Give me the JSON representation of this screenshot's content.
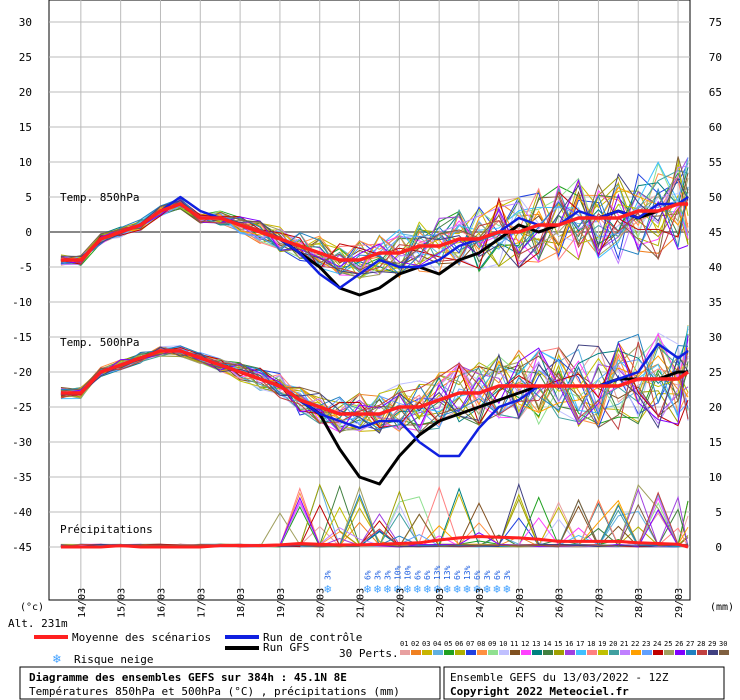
{
  "chart_data": {
    "type": "line",
    "title_line1": "Diagramme des ensembles GEFS sur 384h : 45.1N 8E",
    "title_line2": "Températures 850hPa et 500hPa (°C) , précipitations (mm)",
    "run_info": "Ensemble GEFS du 13/03/2022 - 12Z",
    "copyright": "Copyright 2022 Meteociel.fr",
    "panel_label_850": "Temp. 850hPa",
    "panel_label_500": "Temp. 500hPa",
    "panel_label_precip": "Précipitations",
    "left_unit": "(°c)",
    "right_unit": "(mm)",
    "altitude": "Alt. 231m",
    "left_axis": {
      "ticks": [
        30,
        25,
        20,
        15,
        10,
        5,
        0,
        -5,
        -10,
        -15,
        -20,
        -25,
        -30,
        -35,
        -40,
        -45
      ],
      "range": [
        -45,
        30
      ]
    },
    "right_axis": {
      "ticks": [
        75,
        70,
        65,
        60,
        55,
        50,
        45,
        40,
        35,
        30,
        25,
        20,
        15,
        10,
        5,
        0
      ],
      "range": [
        0,
        75
      ]
    },
    "dates": [
      "14/03",
      "15/03",
      "16/03",
      "17/03",
      "18/03",
      "19/03",
      "20/03",
      "21/03",
      "22/03",
      "23/03",
      "24/03",
      "25/03",
      "26/03",
      "27/03",
      "28/03",
      "29/03"
    ],
    "legend": {
      "mean": "Moyenne des scénarios",
      "control": "Run de contrôle",
      "gfs": "Run GFS",
      "snow": "Risque neige",
      "perts": "30 Perts."
    },
    "pert_numbers": [
      "01",
      "02",
      "03",
      "04",
      "05",
      "06",
      "07",
      "08",
      "09",
      "10",
      "11",
      "12",
      "13",
      "14",
      "15",
      "16",
      "17",
      "18",
      "19",
      "20",
      "21",
      "22",
      "23",
      "24",
      "25",
      "26",
      "27",
      "28",
      "29",
      "30"
    ],
    "pert_colors": [
      "#e8a0a0",
      "#f08020",
      "#c8b400",
      "#60b0e0",
      "#20a020",
      "#b0b000",
      "#2040e0",
      "#ff9040",
      "#90e090",
      "#c0c0ff",
      "#805020",
      "#ff40ff",
      "#008080",
      "#408040",
      "#a0a000",
      "#a040e0",
      "#40c0ff",
      "#ff8080",
      "#c0c000",
      "#40a0a0",
      "#c080ff",
      "#ffa000",
      "#60a0ff",
      "#c00000",
      "#a0a060",
      "#8000ff",
      "#2080c0",
      "#c04040",
      "#404080",
      "#806040"
    ],
    "snow_risk": [
      {
        "day": 20.2,
        "label": "3%"
      },
      {
        "day": 21.2,
        "label": "6%"
      },
      {
        "day": 21.45,
        "label": "3%"
      },
      {
        "day": 21.7,
        "label": "3%"
      },
      {
        "day": 21.95,
        "label": "10%"
      },
      {
        "day": 22.2,
        "label": "10%"
      },
      {
        "day": 22.45,
        "label": "6%"
      },
      {
        "day": 22.7,
        "label": "6%"
      },
      {
        "day": 22.95,
        "label": "13%"
      },
      {
        "day": 23.2,
        "label": "13%"
      },
      {
        "day": 23.45,
        "label": "6%"
      },
      {
        "day": 23.7,
        "label": "13%"
      },
      {
        "day": 23.95,
        "label": "6%"
      },
      {
        "day": 24.2,
        "label": "3%"
      },
      {
        "day": 24.45,
        "label": "6%"
      },
      {
        "day": 24.7,
        "label": "3%"
      }
    ],
    "mean_850": {
      "x": [
        13.5,
        14,
        14.5,
        15,
        15.5,
        16,
        16.5,
        17,
        17.5,
        18,
        18.5,
        19,
        19.5,
        20,
        20.5,
        21,
        21.5,
        22,
        22.5,
        23,
        23.5,
        24,
        24.5,
        25,
        25.5,
        26,
        26.5,
        27,
        27.5,
        28,
        28.5,
        29,
        29.25
      ],
      "y": [
        -4,
        -4,
        -1,
        0,
        1,
        3,
        4,
        2,
        2,
        1,
        0,
        -1,
        -2,
        -3,
        -4,
        -4,
        -3,
        -3,
        -2,
        -2,
        -1,
        -1,
        0,
        0,
        1,
        1,
        2,
        2,
        2,
        3,
        3,
        4,
        4
      ]
    },
    "control_850": {
      "x": [
        13.5,
        14,
        14.5,
        15,
        15.5,
        16,
        16.5,
        17,
        17.5,
        18,
        18.5,
        19,
        19.5,
        20,
        20.5,
        21,
        21.5,
        22,
        22.5,
        23,
        23.5,
        24,
        24.5,
        25,
        25.5,
        26,
        26.5,
        27,
        27.5,
        28,
        28.5,
        29,
        29.25
      ],
      "y": [
        -4,
        -4,
        -1,
        0,
        1,
        3,
        5,
        3,
        2,
        1,
        0,
        -1,
        -3,
        -6,
        -8,
        -6,
        -4,
        -5,
        -5,
        -4,
        -2,
        -1,
        0,
        2,
        1,
        1,
        3,
        2,
        3,
        2,
        4,
        4,
        5
      ]
    },
    "gfs_850": {
      "x": [
        13.5,
        14,
        14.5,
        15,
        15.5,
        16,
        16.5,
        17,
        17.5,
        18,
        18.5,
        19,
        19.5,
        20,
        20.5,
        21,
        21.5,
        22,
        22.5,
        23,
        23.5,
        24,
        24.5,
        25,
        25.5,
        26,
        26.5,
        27,
        27.5,
        28,
        28.5,
        29,
        29.25
      ],
      "y": [
        -4,
        -4,
        -1,
        0,
        1,
        3,
        4,
        2,
        2,
        1,
        0,
        -1,
        -3,
        -5,
        -8,
        -9,
        -8,
        -6,
        -5,
        -6,
        -4,
        -3,
        -1,
        1,
        0,
        1,
        2,
        2,
        3,
        2,
        3,
        4,
        4
      ]
    },
    "mean_500": {
      "x": [
        13.5,
        14,
        14.5,
        15,
        15.5,
        16,
        16.5,
        17,
        17.5,
        18,
        18.5,
        19,
        19.5,
        20,
        20.5,
        21,
        21.5,
        22,
        22.5,
        23,
        23.5,
        24,
        24.5,
        25,
        25.5,
        26,
        26.5,
        27,
        27.5,
        28,
        28.5,
        29,
        29.25
      ],
      "y": [
        -23,
        -23,
        -20,
        -19,
        -18,
        -17,
        -17,
        -18,
        -19,
        -20,
        -21,
        -22,
        -24,
        -25,
        -26,
        -26,
        -26,
        -25,
        -25,
        -24,
        -23,
        -23,
        -22,
        -22,
        -22,
        -22,
        -22,
        -22,
        -22,
        -21,
        -21,
        -21,
        -20
      ]
    },
    "control_500": {
      "x": [
        13.5,
        14,
        14.5,
        15,
        15.5,
        16,
        16.5,
        17,
        17.5,
        18,
        18.5,
        19,
        19.5,
        20,
        20.5,
        21,
        21.5,
        22,
        22.5,
        23,
        23.5,
        24,
        24.5,
        25,
        25.5,
        26,
        26.5,
        27,
        27.5,
        28,
        28.5,
        29,
        29.25
      ],
      "y": [
        -23,
        -23,
        -20,
        -19,
        -18,
        -17,
        -17,
        -18,
        -19,
        -20,
        -21,
        -22,
        -24,
        -26,
        -27,
        -28,
        -27,
        -27,
        -30,
        -32,
        -32,
        -28,
        -25,
        -24,
        -22,
        -22,
        -22,
        -22,
        -21,
        -20,
        -16,
        -18,
        -17
      ]
    },
    "gfs_500": {
      "x": [
        13.5,
        14,
        14.5,
        15,
        15.5,
        16,
        16.5,
        17,
        17.5,
        18,
        18.5,
        19,
        19.5,
        20,
        20.5,
        21,
        21.5,
        22,
        22.5,
        23,
        23.5,
        24,
        24.5,
        25,
        25.5,
        26,
        26.5,
        27,
        27.5,
        28,
        28.5,
        29,
        29.25
      ],
      "y": [
        -23,
        -23,
        -20,
        -19,
        -18,
        -17,
        -17,
        -18,
        -19,
        -20,
        -21,
        -22,
        -24,
        -26,
        -31,
        -35,
        -36,
        -32,
        -29,
        -27,
        -26,
        -25,
        -24,
        -23,
        -22,
        -22,
        -22,
        -22,
        -21,
        -21,
        -21,
        -20,
        -20
      ]
    },
    "mean_precip": {
      "x": [
        13.5,
        14,
        14.5,
        15,
        15.5,
        16,
        16.5,
        17,
        17.5,
        18,
        18.5,
        19,
        19.5,
        20,
        20.5,
        21,
        21.5,
        22,
        22.5,
        23,
        23.5,
        24,
        24.5,
        25,
        25.5,
        26,
        26.5,
        27,
        27.5,
        28,
        28.5,
        29,
        29.25
      ],
      "y": [
        0,
        0,
        0,
        0.2,
        0,
        0,
        0,
        0,
        0.2,
        0.2,
        0.2,
        0.3,
        0.5,
        0.4,
        0.3,
        0.3,
        0.4,
        0.5,
        0.6,
        1,
        1.3,
        1.5,
        1.4,
        1.3,
        1.1,
        0.8,
        0.8,
        0.8,
        0.8,
        0.6,
        0.5,
        0.4,
        0
      ]
    }
  }
}
